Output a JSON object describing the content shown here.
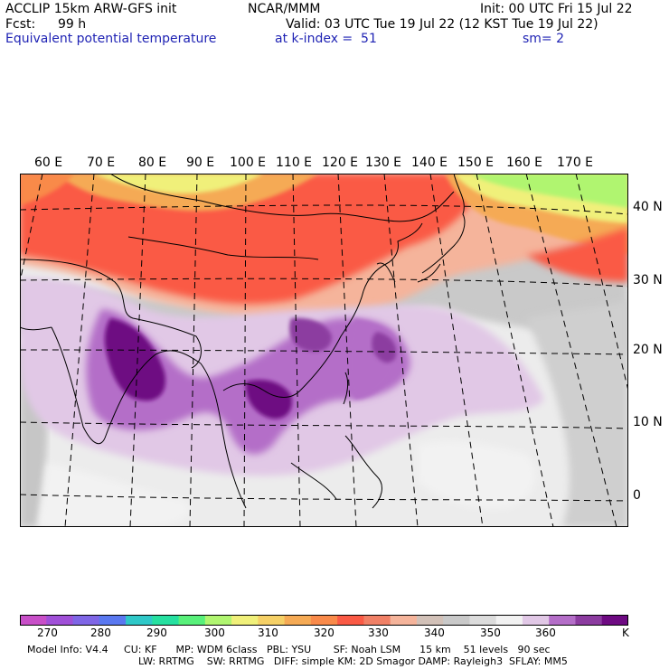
{
  "header": {
    "model_line": "ACCLIP 15km ARW-GFS init",
    "org": "NCAR/MMM",
    "init": "Init: 00 UTC Fri 15 Jul 22",
    "fcst_label": "Fcst:",
    "fcst_value": "99 h",
    "valid": "Valid: 03 UTC Tue 19 Jul 22 (12 KST Tue 19 Jul 22)",
    "field": "Equivalent potential temperature",
    "level": "at k-index =  51",
    "smooth": "sm= 2"
  },
  "map": {
    "lon_labels": [
      "60 E",
      "70 E",
      "80 E",
      "90 E",
      "100 E",
      "110 E",
      "120 E",
      "130 E",
      "140 E",
      "150 E",
      "160 E",
      "170 E"
    ],
    "lat_labels": [
      "40 N",
      "30 N",
      "20 N",
      "10 N",
      "0"
    ]
  },
  "colorbar": {
    "colors": [
      "#c84fc8",
      "#a050d8",
      "#7f66e6",
      "#5a78f0",
      "#2fc8c8",
      "#26e0a0",
      "#58f07a",
      "#b0f570",
      "#f0f07a",
      "#f5d066",
      "#f5aa55",
      "#f98a4a",
      "#fa5a45",
      "#f08066",
      "#f5b49b",
      "#d2c1b8",
      "#c9c9c9",
      "#dcdcdc",
      "#f2f2f2",
      "#e1c8e6",
      "#b46ec8",
      "#8c3ca0",
      "#6e0a82"
    ],
    "labels": [
      "270",
      "280",
      "290",
      "300",
      "310",
      "320",
      "330",
      "340",
      "350",
      "360"
    ],
    "unit": "K"
  },
  "footer": {
    "line1": "Model Info: V4.4     CU: KF      MP: WDM 6class   PBL: YSU       SF: Noah LSM      15 km    51 levels   90 sec",
    "line2": "LW: RRTMG    SW: RRTMG   DIFF: simple KM: 2D Smagor DAMP: Rayleigh3  SFLAY: MM5"
  }
}
